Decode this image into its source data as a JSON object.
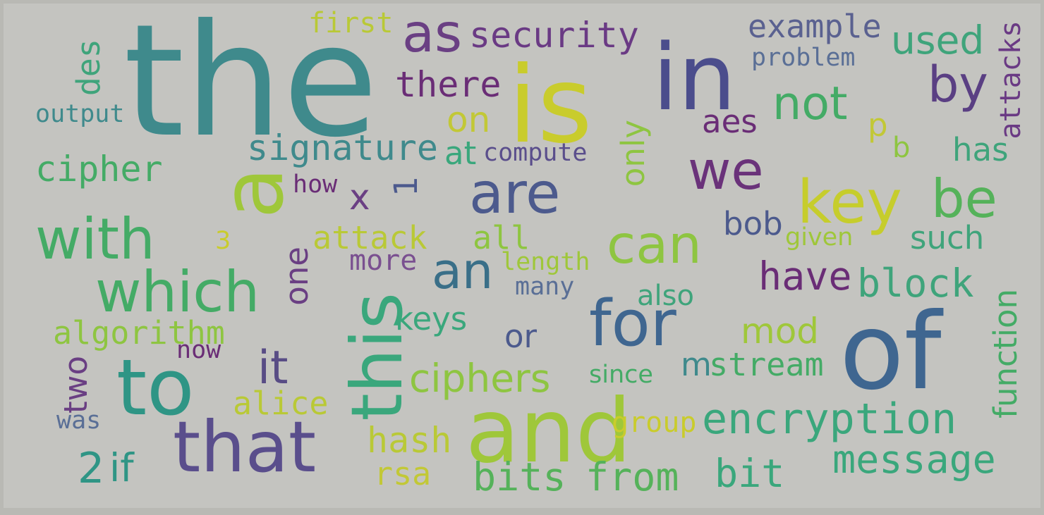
{
  "words": [
    {
      "text": "the",
      "color": "#3f8a8c"
    },
    {
      "text": "is",
      "color": "#c9cc2c"
    },
    {
      "text": "in",
      "color": "#4b4d8c"
    },
    {
      "text": "of",
      "color": "#3f6690"
    },
    {
      "text": "and",
      "color": "#9fc73a"
    },
    {
      "text": "a",
      "color": "#9fc73a"
    },
    {
      "text": "to",
      "color": "#2f9585"
    },
    {
      "text": "that",
      "color": "#5a4e8c"
    },
    {
      "text": "this",
      "color": "#3aa77c"
    },
    {
      "text": "with",
      "color": "#44ab66"
    },
    {
      "text": "which",
      "color": "#44ab66"
    },
    {
      "text": "are",
      "color": "#4c5a8d"
    },
    {
      "text": "for",
      "color": "#3f6690"
    },
    {
      "text": "key",
      "color": "#c6cd2c"
    },
    {
      "text": "we",
      "color": "#6a327a"
    },
    {
      "text": "be",
      "color": "#55b25a"
    },
    {
      "text": "can",
      "color": "#8ec541"
    },
    {
      "text": "by",
      "color": "#5a3f83"
    },
    {
      "text": "as",
      "color": "#6a3f83"
    },
    {
      "text": "an",
      "color": "#3a6f88"
    },
    {
      "text": "it",
      "color": "#584c85"
    },
    {
      "text": "security",
      "color": "#6a3a84"
    },
    {
      "text": "example",
      "color": "#5a6190"
    },
    {
      "text": "used",
      "color": "#3fa47b"
    },
    {
      "text": "attacks",
      "color": "#6a3a84"
    },
    {
      "text": "problem",
      "color": "#5a6f96"
    },
    {
      "text": "first",
      "color": "#b9c936"
    },
    {
      "text": "des",
      "color": "#3fa47b"
    },
    {
      "text": "output",
      "color": "#3f8a8c"
    },
    {
      "text": "there",
      "color": "#6a2d76"
    },
    {
      "text": "on",
      "color": "#c2c836"
    },
    {
      "text": "not",
      "color": "#44ab66"
    },
    {
      "text": "aes",
      "color": "#6a2d76"
    },
    {
      "text": "p",
      "color": "#c2c836"
    },
    {
      "text": "b",
      "color": "#8ec541"
    },
    {
      "text": "has",
      "color": "#3fa47b"
    },
    {
      "text": "signature",
      "color": "#3f8a8c"
    },
    {
      "text": "at",
      "color": "#3aa77c"
    },
    {
      "text": "compute",
      "color": "#5a4e8c"
    },
    {
      "text": "only",
      "color": "#8ec541"
    },
    {
      "text": "cipher",
      "color": "#44ab66"
    },
    {
      "text": "how",
      "color": "#6a2d76"
    },
    {
      "text": "x",
      "color": "#6a3f83"
    },
    {
      "text": "1",
      "color": "#4c5a8d"
    },
    {
      "text": "bob",
      "color": "#4c5a8d"
    },
    {
      "text": "given",
      "color": "#9fc73a"
    },
    {
      "text": "such",
      "color": "#3fa47b"
    },
    {
      "text": "3",
      "color": "#c9cc2c"
    },
    {
      "text": "attack",
      "color": "#b9c936"
    },
    {
      "text": "all",
      "color": "#8ec541"
    },
    {
      "text": "one",
      "color": "#6a3f83"
    },
    {
      "text": "more",
      "color": "#7a5090"
    },
    {
      "text": "length",
      "color": "#9fc73a"
    },
    {
      "text": "many",
      "color": "#5a6f96"
    },
    {
      "text": "have",
      "color": "#6a2d76"
    },
    {
      "text": "block",
      "color": "#3fa47b"
    },
    {
      "text": "also",
      "color": "#3fa47b"
    },
    {
      "text": "algorithm",
      "color": "#8ec541"
    },
    {
      "text": "keys",
      "color": "#3aa77c"
    },
    {
      "text": "or",
      "color": "#4c5a8d"
    },
    {
      "text": "mod",
      "color": "#9fc73a"
    },
    {
      "text": "function",
      "color": "#44ab66"
    },
    {
      "text": "now",
      "color": "#6a2d76"
    },
    {
      "text": "two",
      "color": "#6a3f83"
    },
    {
      "text": "ciphers",
      "color": "#8ec541"
    },
    {
      "text": "since",
      "color": "#44ab66"
    },
    {
      "text": "m",
      "color": "#3f8a8c"
    },
    {
      "text": "stream",
      "color": "#44ab66"
    },
    {
      "text": "alice",
      "color": "#b9c936"
    },
    {
      "text": "was",
      "color": "#5a6f96"
    },
    {
      "text": "group",
      "color": "#c9cc2c"
    },
    {
      "text": "encryption",
      "color": "#3aa77c"
    },
    {
      "text": "2",
      "color": "#2f9585"
    },
    {
      "text": "if",
      "color": "#2f9585"
    },
    {
      "text": "hash",
      "color": "#b9c936"
    },
    {
      "text": "message",
      "color": "#3aa77c"
    },
    {
      "text": "rsa",
      "color": "#c2c836"
    },
    {
      "text": "bits",
      "color": "#55b25a"
    },
    {
      "text": "from",
      "color": "#55b25a"
    },
    {
      "text": "bit",
      "color": "#3aa77c"
    }
  ]
}
